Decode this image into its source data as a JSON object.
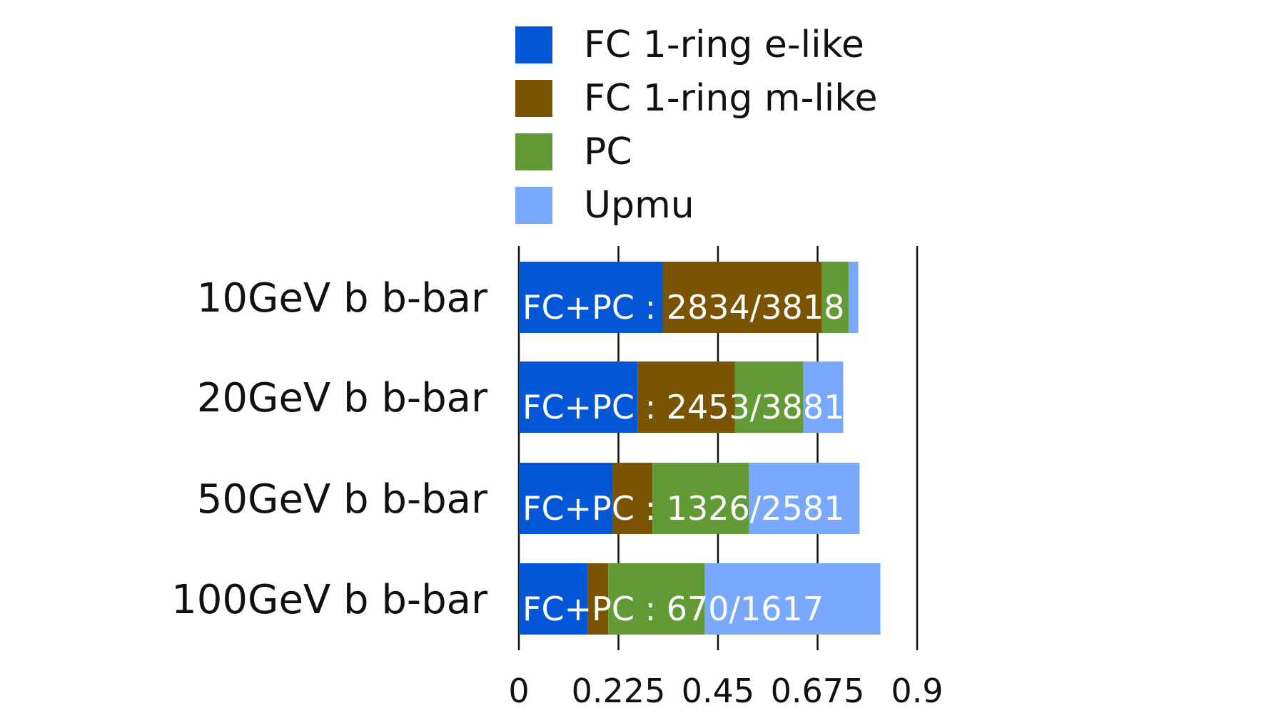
{
  "chart_data": {
    "type": "bar",
    "orientation": "horizontal",
    "stacked": true,
    "title": "",
    "xlabel": "",
    "ylabel": "",
    "xlim": [
      0,
      0.9
    ],
    "xticks": [
      "0",
      "0.225",
      "0.45",
      "0.675",
      "0.9"
    ],
    "grid": "vertical lines at ticks",
    "legend_position": "top",
    "categories": [
      "10GeV b b-bar",
      "20GeV b b-bar",
      "50GeV b b-bar",
      "100GeV b b-bar"
    ],
    "series": [
      {
        "name": "FC 1-ring e-like",
        "color": "#0356d6",
        "values": [
          0.325,
          0.268,
          0.212,
          0.155
        ]
      },
      {
        "name": "FC 1-ring m-like",
        "color": "#7a5400",
        "values": [
          0.36,
          0.22,
          0.09,
          0.047
        ]
      },
      {
        "name": "PC",
        "color": "#629a35",
        "values": [
          0.06,
          0.155,
          0.218,
          0.218
        ]
      },
      {
        "name": "Upmu",
        "color": "#79a8ff",
        "values": [
          0.022,
          0.09,
          0.25,
          0.397
        ]
      }
    ],
    "annotations": [
      "FC+PC : 2834/3818",
      "FC+PC : 2453/3881",
      "FC+PC : 1326/2581",
      "FC+PC : 670/1617"
    ]
  }
}
